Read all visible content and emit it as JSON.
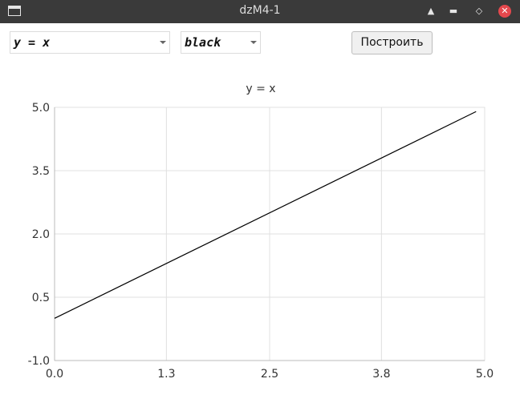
{
  "window": {
    "title": "dzM4-1"
  },
  "toolbar": {
    "function_select": {
      "value": "y = x"
    },
    "color_select": {
      "value": "black"
    },
    "plot_button_label": "Построить"
  },
  "chart_data": {
    "type": "line",
    "title": "y = x",
    "xlabel": "",
    "ylabel": "",
    "xlim": [
      0.0,
      5.0
    ],
    "ylim": [
      -1.0,
      5.0
    ],
    "x_ticks": [
      "0.0",
      "1.3",
      "2.5",
      "3.8",
      "5.0"
    ],
    "y_ticks": [
      "5.0",
      "3.5",
      "2.0",
      "0.5",
      "-1.0"
    ],
    "grid": true,
    "series": [
      {
        "color": "#000000",
        "x": [
          0.0,
          4.9
        ],
        "y": [
          0.0,
          4.9
        ]
      }
    ]
  }
}
